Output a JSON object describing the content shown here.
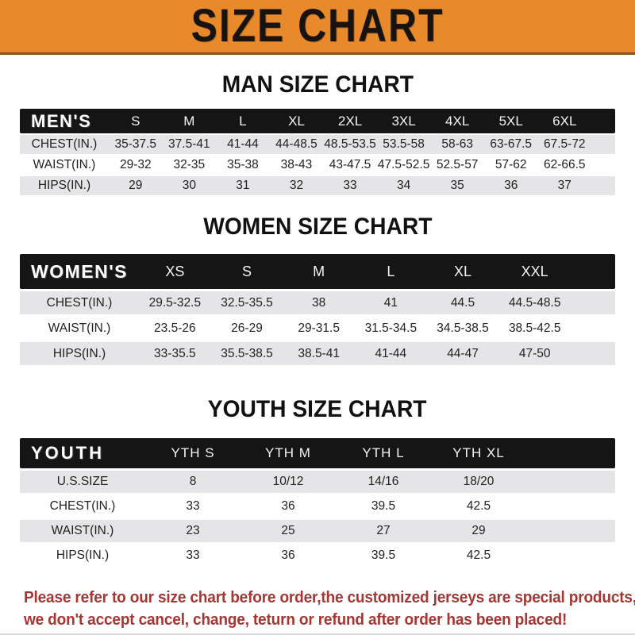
{
  "banner": {
    "title": "SIZE CHART"
  },
  "colors": {
    "accent_orange": "#E8892B",
    "bar_black": "#151515",
    "row_gray": "#E5E5E7",
    "notice_red": "#A43634"
  },
  "sections": [
    {
      "heading": "MAN SIZE CHART",
      "header_label": "MEN'S",
      "columns": [
        "S",
        "M",
        "L",
        "XL",
        "2XL",
        "3XL",
        "4XL",
        "5XL",
        "6XL"
      ],
      "rows": [
        {
          "label": "CHEST(IN.)",
          "values": [
            "35-37.5",
            "37.5-41",
            "41-44",
            "44-48.5",
            "48.5-53.5",
            "53.5-58",
            "58-63",
            "63-67.5",
            "67.5-72"
          ]
        },
        {
          "label": "WAIST(IN.)",
          "values": [
            "29-32",
            "32-35",
            "35-38",
            "38-43",
            "43-47.5",
            "47.5-52.5",
            "52.5-57",
            "57-62",
            "62-66.5"
          ]
        },
        {
          "label": "HIPS(IN.)",
          "values": [
            "29",
            "30",
            "31",
            "32",
            "33",
            "34",
            "35",
            "36",
            "37"
          ]
        }
      ]
    },
    {
      "heading": "WOMEN SIZE CHART",
      "header_label": "WOMEN'S",
      "columns": [
        "XS",
        "S",
        "M",
        "L",
        "XL",
        "XXL"
      ],
      "rows": [
        {
          "label": "CHEST(IN.)",
          "values": [
            "29.5-32.5",
            "32.5-35.5",
            "38",
            "41",
            "44.5",
            "44.5-48.5"
          ]
        },
        {
          "label": "WAIST(IN.)",
          "values": [
            "23.5-26",
            "26-29",
            "29-31.5",
            "31.5-34.5",
            "34.5-38.5",
            "38.5-42.5"
          ]
        },
        {
          "label": "HIPS(IN.)",
          "values": [
            "33-35.5",
            "35.5-38.5",
            "38.5-41",
            "41-44",
            "44-47",
            "47-50"
          ]
        }
      ]
    },
    {
      "heading": "YOUTH SIZE CHART",
      "header_label": "YOUTH",
      "columns": [
        "YTH S",
        "YTH M",
        "YTH L",
        "YTH XL"
      ],
      "rows": [
        {
          "label": "U.S.SIZE",
          "values": [
            "8",
            "10/12",
            "14/16",
            "18/20"
          ]
        },
        {
          "label": "CHEST(IN.)",
          "values": [
            "33",
            "36",
            "39.5",
            "42.5"
          ]
        },
        {
          "label": "WAIST(IN.)",
          "values": [
            "23",
            "25",
            "27",
            "29"
          ]
        },
        {
          "label": "HIPS(IN.)",
          "values": [
            "33",
            "36",
            "39.5",
            "42.5"
          ]
        }
      ]
    }
  ],
  "footer": {
    "line1": "Please refer to our size chart before order,the customized jerseys are special products,",
    "line2": "we don't accept cancel, change, teturn or refund after order has been placed!"
  }
}
